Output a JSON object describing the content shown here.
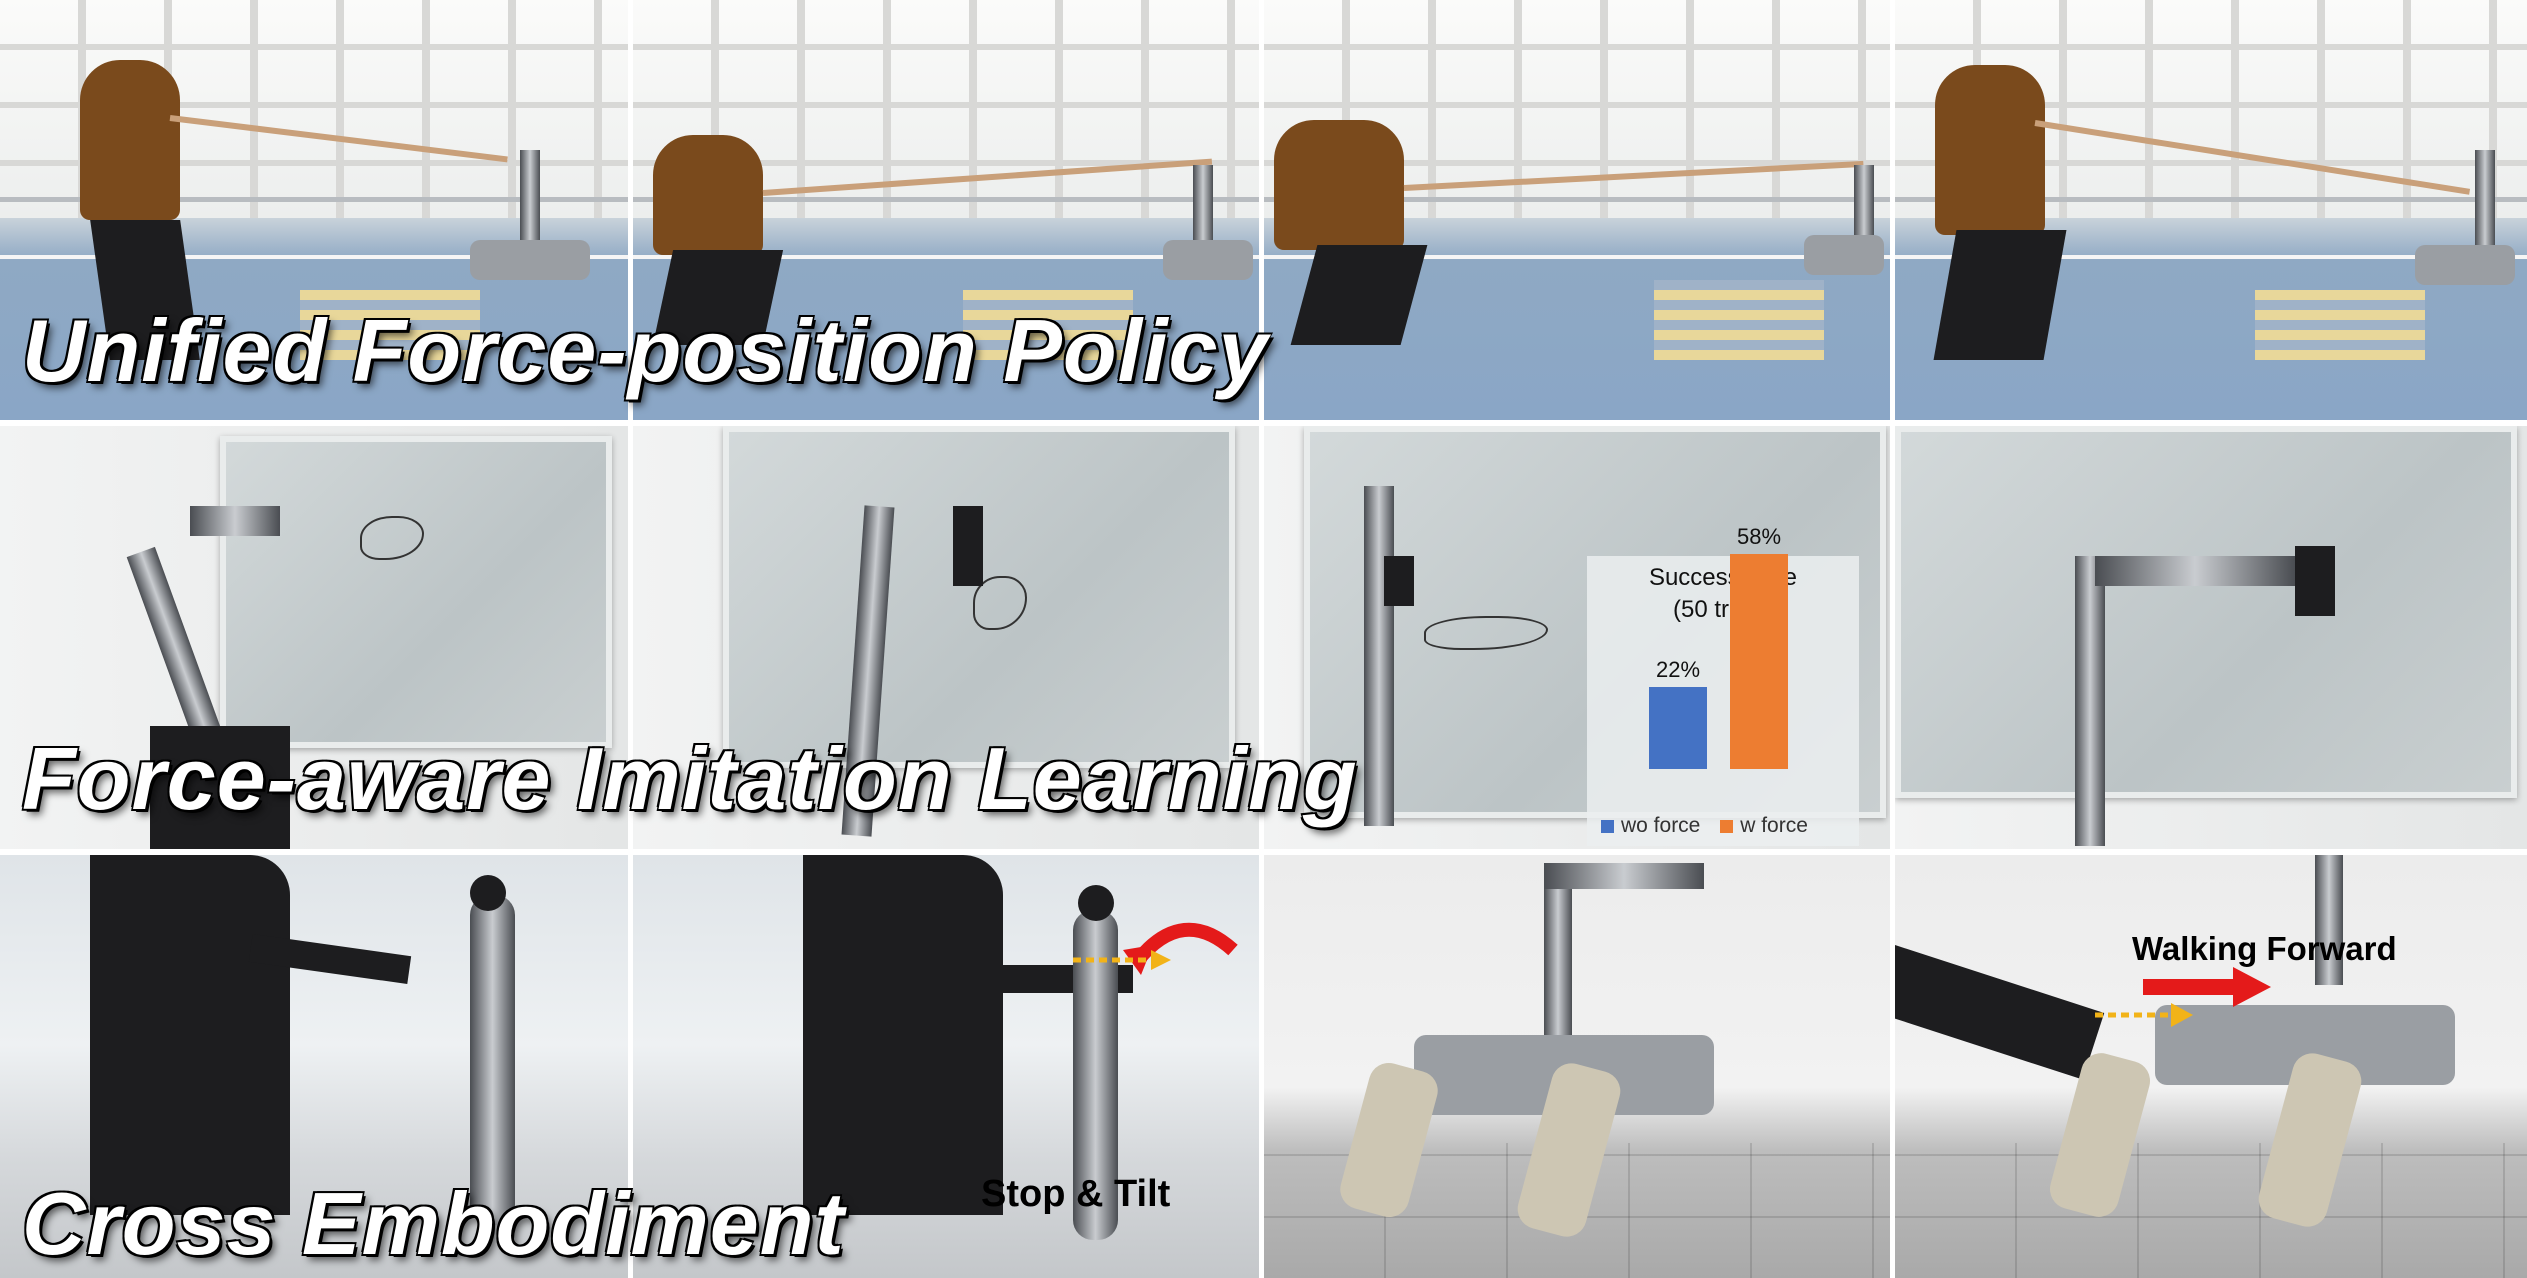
{
  "rows": [
    {
      "caption": "Unified Force-position Policy"
    },
    {
      "caption": "Force-aware Imitation Learning"
    },
    {
      "caption": "Cross Embodiment"
    }
  ],
  "chart_data": {
    "type": "bar",
    "title": "Success Rate",
    "subtitle": "(50 trials)",
    "categories": [
      "wo force",
      "w force"
    ],
    "values": [
      22,
      58
    ],
    "value_labels": [
      "22%",
      "58%"
    ],
    "colors": [
      "#4472c4",
      "#ed7d31"
    ],
    "ylim": [
      0,
      70
    ],
    "legend_position": "bottom"
  },
  "annotations": {
    "stop_tilt": "Stop & Tilt",
    "walking_forward": "Walking Forward"
  },
  "colors": {
    "arrow_red": "#e41a1a",
    "force_arrow": "#f2b318"
  }
}
